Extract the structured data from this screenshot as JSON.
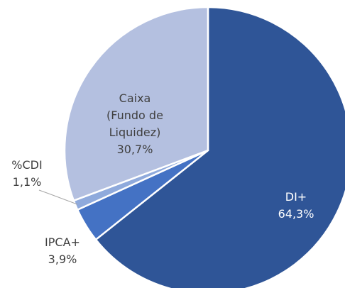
{
  "chart_data": {
    "type": "pie",
    "categories": [
      "DI+",
      "IPCA+",
      "%CDI",
      "Caixa (Fundo de Liquidez)"
    ],
    "values": [
      64.3,
      3.9,
      1.1,
      30.7
    ],
    "value_labels": [
      "64,3%",
      "3,9%",
      "1,1%",
      "30,7%"
    ],
    "colors": [
      "#2f5597",
      "#4472c4",
      "#8faadc",
      "#b4c0e0"
    ]
  }
}
